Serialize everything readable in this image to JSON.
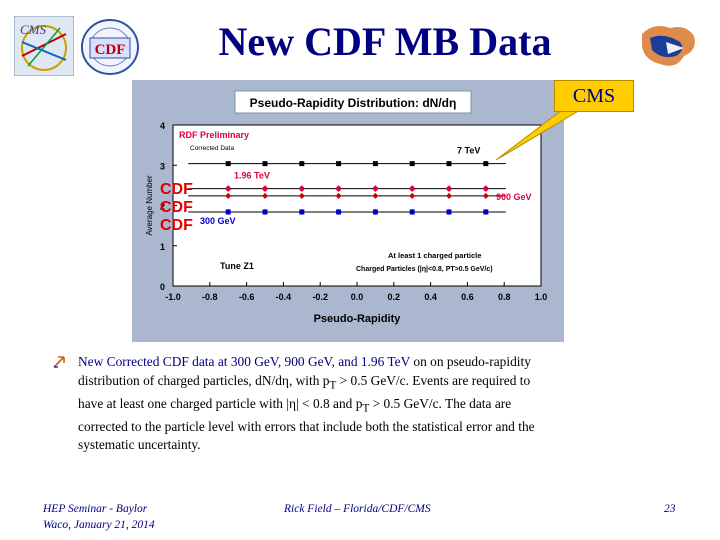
{
  "slide": {
    "title": "New CDF MB Data",
    "callout": "CMS",
    "cdf_labels": [
      "CDF",
      "CDF",
      "CDF"
    ],
    "bullet": {
      "lead": "New Corrected CDF data at 300 GeV, 900 GeV, and 1.96 TeV",
      "line1_rest": " on on pseudo-rapidity",
      "line2_a": "distribution of charged particles, dN/d",
      "line2_b": ", with p",
      "line2_c": " > 0.5 GeV/c.  Events are required to",
      "line3_a": "have at least one charged particle with |",
      "line3_b": "| < 0.8 and p",
      "line3_c": " > 0.5 GeV/c.  The data are",
      "line4": "corrected to the particle level with errors that include both the statistical error and the",
      "line5": "systematic uncertainty.",
      "eta": "η",
      "sub_t": "T"
    },
    "footer": {
      "left_line1": "HEP Seminar - Baylor",
      "left_line2": "Waco, January 21, 2014",
      "center": "Rick Field – Florida/CDF/CMS",
      "page": "23"
    }
  },
  "logos": {
    "cms": "CMS",
    "cdf": "CDF"
  },
  "chart_data": {
    "type": "scatter",
    "title": "Pseudo-Rapidity Distribution: dN/dη",
    "xlabel": "Pseudo-Rapidity",
    "ylabel": "Average Number",
    "xlim": [
      -1.0,
      1.0
    ],
    "ylim": [
      0,
      4
    ],
    "x_ticks": [
      "-1.0",
      "-0.8",
      "-0.6",
      "-0.4",
      "-0.2",
      "0.0",
      "0.2",
      "0.4",
      "0.6",
      "0.8",
      "1.0"
    ],
    "y_ticks": [
      "0",
      "1",
      "2",
      "3",
      "4"
    ],
    "x": [
      -0.7,
      -0.5,
      -0.3,
      -0.1,
      0.1,
      0.3,
      0.5,
      0.7
    ],
    "series": [
      {
        "name": "7 TeV",
        "values": [
          3.04,
          3.04,
          3.04,
          3.04,
          3.04,
          3.04,
          3.04,
          3.04
        ],
        "error": 0,
        "color": "#000000",
        "marker": "square"
      },
      {
        "name": "1.96 TeV",
        "values": [
          2.42,
          2.42,
          2.42,
          2.42,
          2.42,
          2.42,
          2.42,
          2.42
        ],
        "error": 0.08,
        "color": "#e0003a",
        "marker": "circle"
      },
      {
        "name": "900 GeV",
        "values": [
          2.24,
          2.24,
          2.24,
          2.24,
          2.24,
          2.24,
          2.24,
          2.24
        ],
        "error": 0.06,
        "color": "#d00000",
        "marker": "diamond"
      },
      {
        "name": "300 GeV",
        "values": [
          1.84,
          1.84,
          1.84,
          1.84,
          1.84,
          1.84,
          1.84,
          1.84
        ],
        "error": 0.07,
        "color": "#0000cc",
        "marker": "square"
      }
    ],
    "annotations": {
      "prelim": "RDF Preliminary",
      "corrected": "Corrected Data",
      "tune": "Tune Z1",
      "cut1": "At least 1 charged particle",
      "cut2": "Charged Particles (|η|<0.8, PT>0.5 GeV/c)"
    },
    "grid": false,
    "legend": "none"
  }
}
